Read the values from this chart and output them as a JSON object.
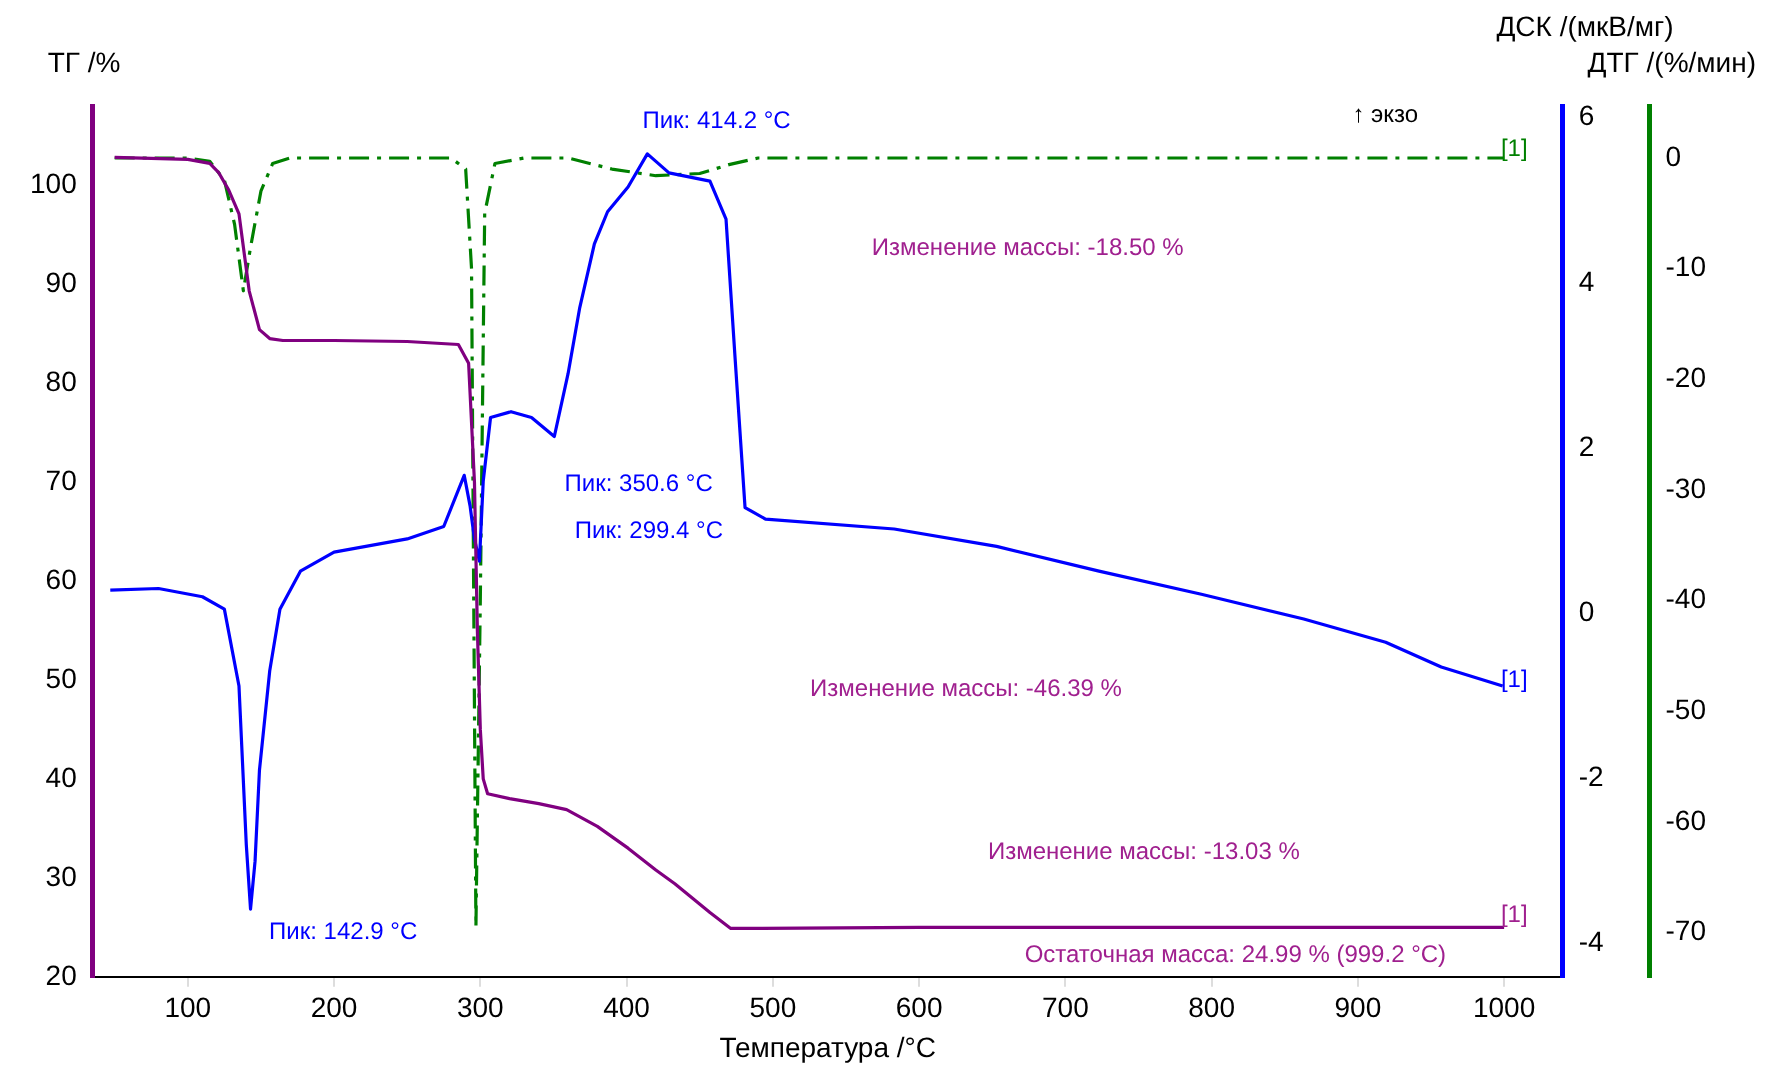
{
  "chart_data": {
    "type": "line",
    "xlabel": "Температура /°C",
    "ylabel": "ТГ /%",
    "y2label": "ДСК /(мкВ/мг)",
    "y3label": "ДТГ /(%/мин)",
    "xlim": [
      35,
      1040
    ],
    "xticks": [
      100,
      200,
      300,
      400,
      500,
      600,
      700,
      800,
      900,
      1000
    ],
    "ylim": [
      20,
      108
    ],
    "yticks": [
      20,
      30,
      40,
      50,
      60,
      70,
      80,
      90,
      100
    ],
    "y2lim": [
      -4.4,
      6.14
    ],
    "y2ticks": [
      -4,
      -2,
      0,
      2,
      4,
      6
    ],
    "y3lim": [
      -74,
      4.7
    ],
    "y3ticks": [
      -70,
      -60,
      -50,
      -40,
      -30,
      -20,
      -10,
      0
    ],
    "grid": false,
    "legend": false,
    "marker": "none",
    "series": [
      {
        "type": "line",
        "axis": "y",
        "color": "#800080",
        "line_style": "solid",
        "x": [
          50,
          100,
          115,
          121,
          128,
          135,
          142,
          149,
          156,
          165,
          200,
          250,
          285,
          292,
          296,
          298,
          300,
          302,
          305,
          320,
          340,
          359,
          380,
          401,
          420,
          433,
          457,
          471,
          490,
          600,
          800,
          1000
        ],
        "values": [
          102.8,
          102.6,
          102.2,
          101.3,
          99.5,
          97.1,
          89.3,
          85.4,
          84.5,
          84.3,
          84.3,
          84.2,
          83.9,
          82,
          70,
          55,
          45,
          40,
          38.5,
          38.0,
          37.5,
          36.9,
          35.2,
          33.0,
          30.8,
          29.4,
          26.5,
          24.9,
          24.9,
          25.0,
          25.0,
          25.0
        ]
      },
      {
        "type": "line",
        "axis": "y2",
        "color": "#0000ff",
        "line_style": "solid",
        "x": [
          47,
          80,
          110,
          125,
          135,
          140,
          142.9,
          146,
          149,
          156,
          163,
          177,
          200,
          250,
          275,
          289,
          293,
          296,
          299.4,
          302,
          307,
          321,
          335,
          350.6,
          360,
          368,
          378,
          387,
          401,
          414.2,
          429,
          457,
          468,
          474,
          481,
          495,
          583,
          653,
          723,
          793,
          863,
          919,
          957,
          999
        ],
        "values": [
          0.28,
          0.3,
          0.2,
          0.05,
          -0.88,
          -2.8,
          -3.58,
          -3.0,
          -1.9,
          -0.7,
          0.05,
          0.51,
          0.74,
          0.9,
          1.05,
          1.67,
          1.3,
          0.9,
          0.63,
          1.6,
          2.37,
          2.44,
          2.37,
          2.14,
          2.9,
          3.7,
          4.47,
          4.86,
          5.16,
          5.56,
          5.33,
          5.23,
          4.77,
          3.14,
          1.28,
          1.14,
          1.02,
          0.81,
          0.51,
          0.23,
          -0.07,
          -0.35,
          -0.65,
          -0.88
        ]
      },
      {
        "type": "line",
        "axis": "y3",
        "color": "#008000",
        "line_style": "dashed",
        "x": [
          50,
          100,
          115,
          125,
          132,
          138,
          143,
          150,
          158,
          170,
          200,
          280,
          290,
          294,
          297,
          300,
          303,
          310,
          330,
          360,
          390,
          420,
          450,
          470,
          490,
          600,
          800,
          1000
        ],
        "values": [
          0,
          0,
          -0.3,
          -2,
          -6,
          -12,
          -8,
          -3,
          -0.5,
          0,
          0,
          0,
          -1,
          -10,
          -69.5,
          -40,
          -5,
          -0.5,
          0,
          0,
          -1,
          -1.6,
          -1.4,
          -0.6,
          0,
          0,
          0,
          0
        ]
      }
    ],
    "annotations": [
      "Пик: 414.2 °C",
      "Изменение массы: -18.50 %",
      "Пик: 350.6 °C",
      "Пик: 299.4 °C",
      "Изменение массы: -46.39 %",
      "Пик: 142.9 °C",
      "Изменение массы: -13.03 %",
      "Остаточная масса: 24.99 % (999.2 °C)",
      "↑ экзо",
      "[1]",
      "[1]",
      "[1]"
    ]
  }
}
